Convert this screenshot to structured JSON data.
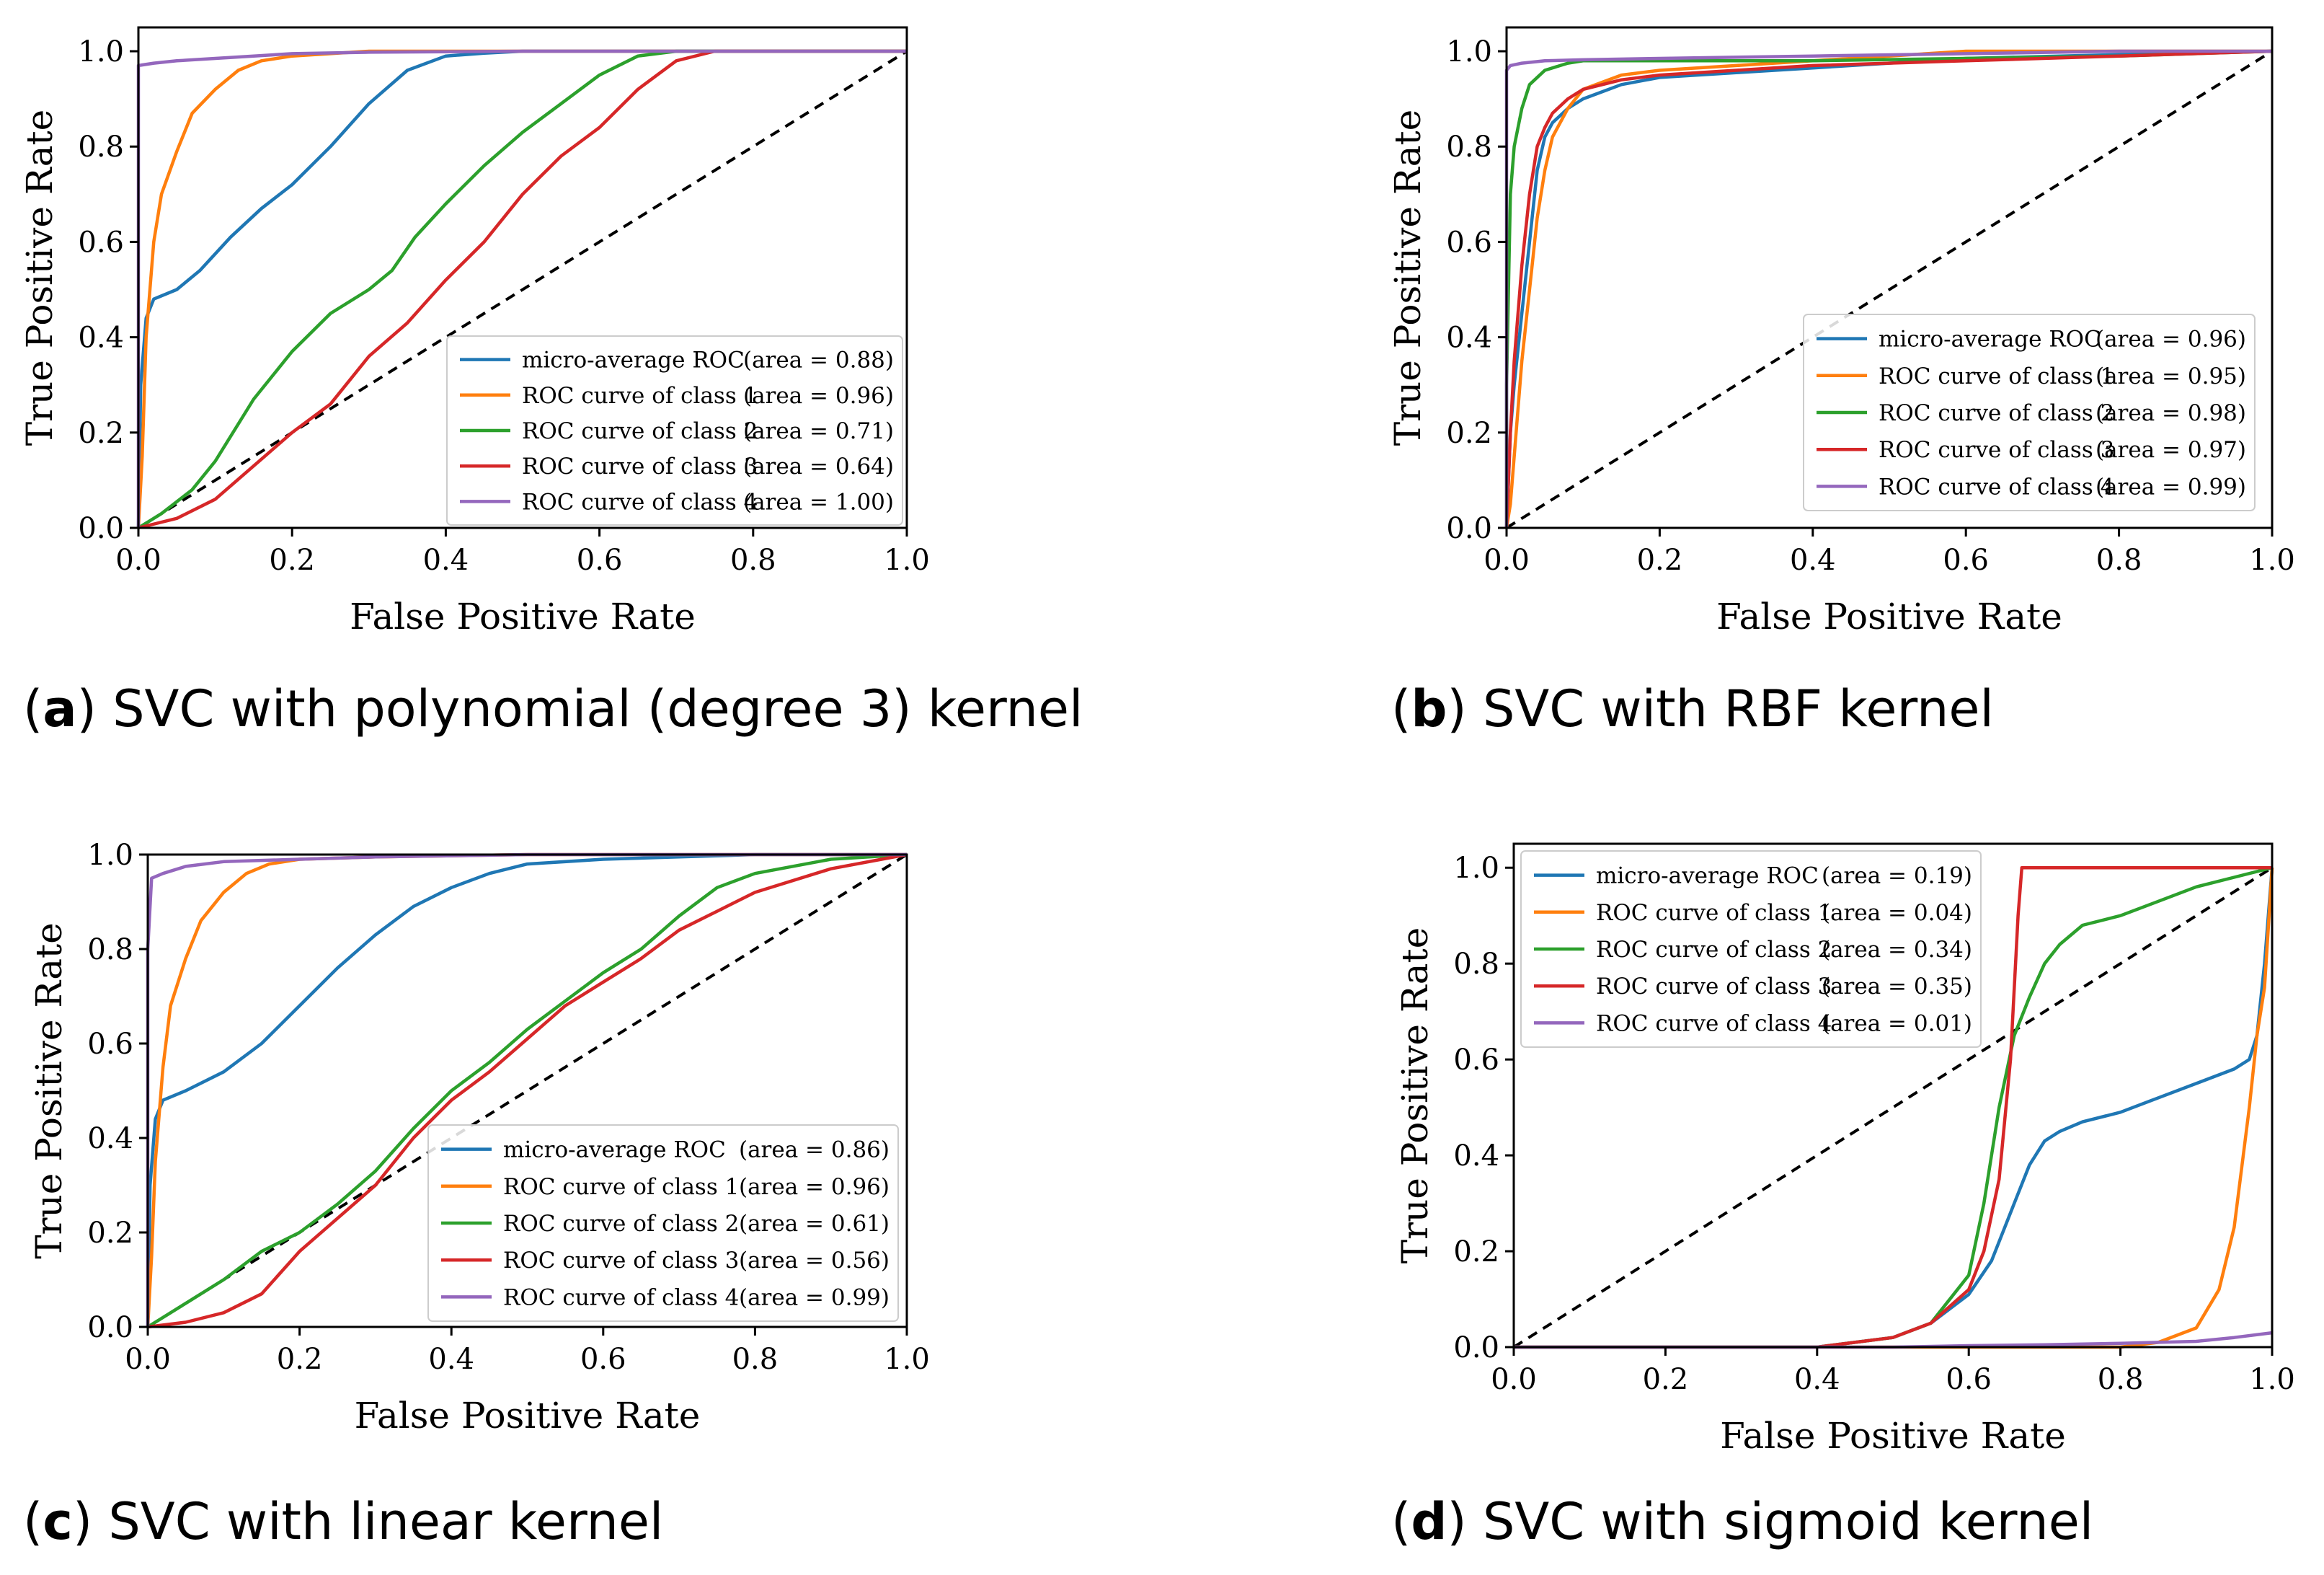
{
  "figure": {
    "panels": [
      {
        "letter": "a",
        "caption": "SVC with polynomial (degree 3) kernel"
      },
      {
        "letter": "b",
        "caption": "SVC with RBF kernel"
      },
      {
        "letter": "c",
        "caption": "SVC with linear kernel"
      },
      {
        "letter": "d",
        "caption": "SVC with sigmoid kernel"
      }
    ]
  },
  "colors": {
    "micro": "#1f77b4",
    "class1": "#ff7f0e",
    "class2": "#2ca02c",
    "class3": "#d62728",
    "class4": "#9467bd",
    "diagonal": "#000000"
  },
  "chart_data": [
    {
      "type": "line",
      "panel": "a",
      "xlabel": "False Positive Rate",
      "ylabel": "True Positive Rate",
      "xlim": [
        0.0,
        1.0
      ],
      "ylim": [
        0.0,
        1.05
      ],
      "xticks": [
        "0.0",
        "0.2",
        "0.4",
        "0.6",
        "0.8",
        "1.0"
      ],
      "yticks": [
        "0.0",
        "0.2",
        "0.4",
        "0.6",
        "0.8",
        "1.0"
      ],
      "legend_position": "lower-right",
      "series": [
        {
          "name": "micro-average ROC",
          "area": "(area = 0.88)",
          "color": "micro",
          "x": [
            0,
            0.003,
            0.01,
            0.02,
            0.05,
            0.08,
            0.12,
            0.16,
            0.2,
            0.25,
            0.3,
            0.35,
            0.4,
            0.45,
            0.5,
            0.6,
            0.8,
            1.0
          ],
          "y": [
            0,
            0.3,
            0.44,
            0.48,
            0.5,
            0.54,
            0.61,
            0.67,
            0.72,
            0.8,
            0.89,
            0.96,
            0.99,
            0.996,
            1.0,
            1.0,
            1.0,
            1.0
          ]
        },
        {
          "name": "ROC curve of class 1",
          "area": "(area = 0.96)",
          "color": "class1",
          "x": [
            0,
            0.005,
            0.01,
            0.02,
            0.03,
            0.05,
            0.07,
            0.1,
            0.13,
            0.16,
            0.2,
            0.25,
            0.3,
            0.4,
            0.6,
            1.0
          ],
          "y": [
            0,
            0.15,
            0.4,
            0.6,
            0.7,
            0.79,
            0.87,
            0.92,
            0.96,
            0.98,
            0.99,
            0.995,
            1.0,
            1.0,
            1.0,
            1.0
          ]
        },
        {
          "name": "ROC curve of class 2",
          "area": "(area = 0.71)",
          "color": "class2",
          "x": [
            0,
            0.03,
            0.07,
            0.1,
            0.15,
            0.2,
            0.25,
            0.3,
            0.33,
            0.36,
            0.4,
            0.45,
            0.5,
            0.55,
            0.6,
            0.65,
            0.7,
            0.8,
            1.0
          ],
          "y": [
            0,
            0.03,
            0.08,
            0.14,
            0.27,
            0.37,
            0.45,
            0.5,
            0.54,
            0.61,
            0.68,
            0.76,
            0.83,
            0.89,
            0.95,
            0.99,
            1.0,
            1.0,
            1.0
          ]
        },
        {
          "name": "ROC curve of class 3",
          "area": "(area = 0.64)",
          "color": "class3",
          "x": [
            0,
            0.05,
            0.1,
            0.15,
            0.2,
            0.25,
            0.3,
            0.35,
            0.4,
            0.45,
            0.5,
            0.55,
            0.6,
            0.65,
            0.7,
            0.75,
            0.8,
            1.0
          ],
          "y": [
            0,
            0.02,
            0.06,
            0.13,
            0.2,
            0.26,
            0.36,
            0.43,
            0.52,
            0.6,
            0.7,
            0.78,
            0.84,
            0.92,
            0.98,
            1.0,
            1.0,
            1.0
          ]
        },
        {
          "name": "ROC curve of class 4",
          "area": "(area = 1.00)",
          "color": "class4",
          "x": [
            0,
            0.0,
            0.02,
            0.05,
            0.1,
            0.15,
            0.2,
            0.3,
            0.5,
            1.0
          ],
          "y": [
            0,
            0.97,
            0.975,
            0.98,
            0.985,
            0.99,
            0.995,
            0.998,
            1.0,
            1.0
          ]
        }
      ]
    },
    {
      "type": "line",
      "panel": "b",
      "xlabel": "False Positive Rate",
      "ylabel": "True Positive Rate",
      "xlim": [
        0.0,
        1.0
      ],
      "ylim": [
        0.0,
        1.05
      ],
      "xticks": [
        "0.0",
        "0.2",
        "0.4",
        "0.6",
        "0.8",
        "1.0"
      ],
      "yticks": [
        "0.0",
        "0.2",
        "0.4",
        "0.6",
        "0.8",
        "1.0"
      ],
      "legend_position": "lower-right",
      "series": [
        {
          "name": "micro-average ROC",
          "area": "(area = 0.96)",
          "color": "micro",
          "x": [
            0,
            0.005,
            0.01,
            0.02,
            0.03,
            0.04,
            0.05,
            0.06,
            0.08,
            0.1,
            0.15,
            0.2,
            0.3,
            0.4,
            0.5,
            0.6,
            0.8,
            1.0
          ],
          "y": [
            0,
            0.2,
            0.3,
            0.45,
            0.6,
            0.75,
            0.82,
            0.85,
            0.88,
            0.9,
            0.93,
            0.945,
            0.955,
            0.965,
            0.975,
            0.985,
            0.993,
            1.0
          ]
        },
        {
          "name": "ROC curve of class 1",
          "area": "(area = 0.95)",
          "color": "class1",
          "x": [
            0,
            0.005,
            0.01,
            0.02,
            0.03,
            0.04,
            0.05,
            0.06,
            0.08,
            0.1,
            0.15,
            0.2,
            0.3,
            0.4,
            0.5,
            0.6,
            0.8,
            1.0
          ],
          "y": [
            0,
            0.05,
            0.15,
            0.35,
            0.5,
            0.65,
            0.75,
            0.82,
            0.88,
            0.92,
            0.95,
            0.96,
            0.97,
            0.98,
            0.99,
            1.0,
            1.0,
            1.0
          ]
        },
        {
          "name": "ROC curve of class 2",
          "area": "(area = 0.98)",
          "color": "class2",
          "x": [
            0,
            0.0,
            0.005,
            0.01,
            0.02,
            0.03,
            0.05,
            0.08,
            0.1,
            0.2,
            0.4,
            0.6,
            0.8,
            1.0
          ],
          "y": [
            0,
            0.3,
            0.7,
            0.8,
            0.88,
            0.93,
            0.96,
            0.975,
            0.98,
            0.98,
            0.98,
            0.985,
            0.99,
            1.0
          ]
        },
        {
          "name": "ROC curve of class 3",
          "area": "(area = 0.97)",
          "color": "class3",
          "x": [
            0,
            0.005,
            0.01,
            0.02,
            0.03,
            0.04,
            0.05,
            0.06,
            0.08,
            0.1,
            0.15,
            0.2,
            0.3,
            0.4,
            0.6,
            0.8,
            1.0
          ],
          "y": [
            0,
            0.2,
            0.35,
            0.55,
            0.7,
            0.8,
            0.84,
            0.87,
            0.9,
            0.92,
            0.94,
            0.95,
            0.96,
            0.97,
            0.98,
            0.99,
            1.0
          ]
        },
        {
          "name": "ROC curve of class 4",
          "area": "(area = 0.99)",
          "color": "class4",
          "x": [
            0,
            0.0,
            0.005,
            0.02,
            0.05,
            0.1,
            0.2,
            0.4,
            0.6,
            0.8,
            1.0
          ],
          "y": [
            0,
            0.96,
            0.97,
            0.975,
            0.98,
            0.982,
            0.985,
            0.99,
            0.995,
            1.0,
            1.0
          ]
        }
      ]
    },
    {
      "type": "line",
      "panel": "c",
      "xlabel": "False Positive Rate",
      "ylabel": "True Positive Rate",
      "xlim": [
        0.0,
        1.0
      ],
      "ylim": [
        0.0,
        1.0
      ],
      "xticks": [
        "0.0",
        "0.2",
        "0.4",
        "0.6",
        "0.8",
        "1.0"
      ],
      "yticks": [
        "0.0",
        "0.2",
        "0.4",
        "0.6",
        "0.8",
        "1.0"
      ],
      "legend_position": "lower-right",
      "series": [
        {
          "name": "micro-average ROC",
          "area": "(area = 0.86)",
          "color": "micro",
          "x": [
            0,
            0.003,
            0.01,
            0.02,
            0.05,
            0.1,
            0.15,
            0.2,
            0.25,
            0.3,
            0.35,
            0.4,
            0.45,
            0.5,
            0.6,
            0.7,
            0.8,
            1.0
          ],
          "y": [
            0,
            0.3,
            0.44,
            0.48,
            0.5,
            0.54,
            0.6,
            0.68,
            0.76,
            0.83,
            0.89,
            0.93,
            0.96,
            0.98,
            0.99,
            0.995,
            1.0,
            1.0
          ]
        },
        {
          "name": "ROC curve of class 1",
          "area": "(area = 0.96)",
          "color": "class1",
          "x": [
            0,
            0.005,
            0.01,
            0.02,
            0.03,
            0.05,
            0.07,
            0.1,
            0.13,
            0.16,
            0.2,
            0.3,
            0.5,
            1.0
          ],
          "y": [
            0,
            0.15,
            0.35,
            0.55,
            0.68,
            0.78,
            0.86,
            0.92,
            0.96,
            0.98,
            0.99,
            0.995,
            1.0,
            1.0
          ]
        },
        {
          "name": "ROC curve of class 2",
          "area": "(area = 0.61)",
          "color": "class2",
          "x": [
            0,
            0.05,
            0.1,
            0.15,
            0.2,
            0.25,
            0.3,
            0.35,
            0.4,
            0.45,
            0.5,
            0.55,
            0.6,
            0.65,
            0.7,
            0.75,
            0.8,
            0.9,
            1.0
          ],
          "y": [
            0,
            0.05,
            0.1,
            0.16,
            0.2,
            0.26,
            0.33,
            0.42,
            0.5,
            0.56,
            0.63,
            0.69,
            0.75,
            0.8,
            0.87,
            0.93,
            0.96,
            0.99,
            1.0
          ]
        },
        {
          "name": "ROC curve of class 3",
          "area": "(area = 0.56)",
          "color": "class3",
          "x": [
            0,
            0.05,
            0.1,
            0.15,
            0.2,
            0.25,
            0.3,
            0.35,
            0.4,
            0.45,
            0.5,
            0.55,
            0.6,
            0.65,
            0.7,
            0.75,
            0.8,
            0.9,
            1.0
          ],
          "y": [
            0,
            0.01,
            0.03,
            0.07,
            0.16,
            0.23,
            0.3,
            0.4,
            0.48,
            0.54,
            0.61,
            0.68,
            0.73,
            0.78,
            0.84,
            0.88,
            0.92,
            0.97,
            1.0
          ]
        },
        {
          "name": "ROC curve of class 4",
          "area": "(area = 0.99)",
          "color": "class4",
          "x": [
            0,
            0.0,
            0.005,
            0.02,
            0.05,
            0.1,
            0.2,
            0.3,
            0.5,
            1.0
          ],
          "y": [
            0,
            0.8,
            0.95,
            0.96,
            0.975,
            0.985,
            0.99,
            0.995,
            1.0,
            1.0
          ]
        }
      ]
    },
    {
      "type": "line",
      "panel": "d",
      "xlabel": "False Positive Rate",
      "ylabel": "True Positive Rate",
      "xlim": [
        0.0,
        1.0
      ],
      "ylim": [
        0.0,
        1.05
      ],
      "xticks": [
        "0.0",
        "0.2",
        "0.4",
        "0.6",
        "0.8",
        "1.0"
      ],
      "yticks": [
        "0.0",
        "0.2",
        "0.4",
        "0.6",
        "0.8",
        "1.0"
      ],
      "legend_position": "upper-left",
      "series": [
        {
          "name": "micro-average ROC",
          "area": "(area = 0.19)",
          "color": "micro",
          "x": [
            0,
            0.3,
            0.4,
            0.5,
            0.55,
            0.6,
            0.63,
            0.66,
            0.68,
            0.7,
            0.72,
            0.75,
            0.8,
            0.85,
            0.9,
            0.95,
            0.97,
            0.98,
            0.99,
            1.0
          ],
          "y": [
            0,
            0.0,
            0.0,
            0.02,
            0.05,
            0.11,
            0.18,
            0.3,
            0.38,
            0.43,
            0.45,
            0.47,
            0.49,
            0.52,
            0.55,
            0.58,
            0.6,
            0.65,
            0.8,
            1.0
          ]
        },
        {
          "name": "ROC curve of class 1",
          "area": "(area = 0.04)",
          "color": "class1",
          "x": [
            0,
            0.8,
            0.85,
            0.9,
            0.93,
            0.95,
            0.97,
            0.98,
            0.99,
            1.0
          ],
          "y": [
            0,
            0.0,
            0.01,
            0.04,
            0.12,
            0.25,
            0.5,
            0.65,
            0.75,
            1.0
          ]
        },
        {
          "name": "ROC curve of class 2",
          "area": "(area = 0.34)",
          "color": "class2",
          "x": [
            0,
            0.4,
            0.5,
            0.55,
            0.6,
            0.62,
            0.64,
            0.66,
            0.68,
            0.7,
            0.72,
            0.75,
            0.8,
            0.85,
            0.9,
            0.95,
            1.0
          ],
          "y": [
            0,
            0.0,
            0.02,
            0.05,
            0.15,
            0.3,
            0.5,
            0.65,
            0.73,
            0.8,
            0.84,
            0.88,
            0.9,
            0.93,
            0.96,
            0.98,
            1.0
          ]
        },
        {
          "name": "ROC curve of class 3",
          "area": "(area = 0.35)",
          "color": "class3",
          "x": [
            0,
            0.4,
            0.5,
            0.55,
            0.6,
            0.62,
            0.64,
            0.655,
            0.665,
            0.67,
            0.7,
            0.8,
            0.9,
            1.0
          ],
          "y": [
            0,
            0.0,
            0.02,
            0.05,
            0.12,
            0.2,
            0.35,
            0.6,
            0.9,
            1.0,
            1.0,
            1.0,
            1.0,
            1.0
          ]
        },
        {
          "name": "ROC curve of class 4",
          "area": "(area = 0.01)",
          "color": "class4",
          "x": [
            0,
            0.3,
            0.5,
            0.6,
            0.7,
            0.8,
            0.9,
            0.95,
            1.0
          ],
          "y": [
            0,
            0.0,
            0.0,
            0.003,
            0.005,
            0.008,
            0.012,
            0.02,
            0.03
          ]
        }
      ]
    }
  ]
}
